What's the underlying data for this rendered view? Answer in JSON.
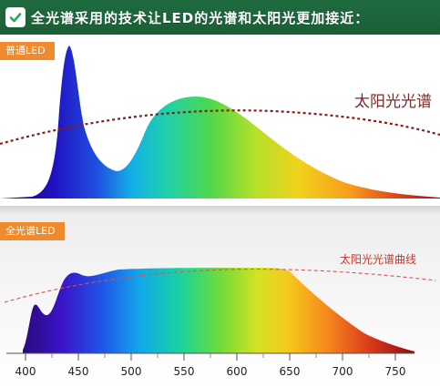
{
  "header": {
    "title": "全光谱采用的技术让LED的光谱和太阳光更加接近：",
    "icon": "check-icon",
    "background": "#1f6b3f"
  },
  "panel_top": {
    "tag": "普通LED",
    "sun_label": "太阳光光谱"
  },
  "panel_bottom": {
    "tag": "全光谱LED",
    "sun_label": "太阳光光谱曲线",
    "axis_ticks": [
      "400",
      "450",
      "500",
      "550",
      "600",
      "650",
      "700",
      "750"
    ]
  },
  "colors": {
    "accent_tag": "#f08a2c",
    "sun_curve_top": "#8b1a1a",
    "sun_curve_bottom": "#d9534f"
  }
}
